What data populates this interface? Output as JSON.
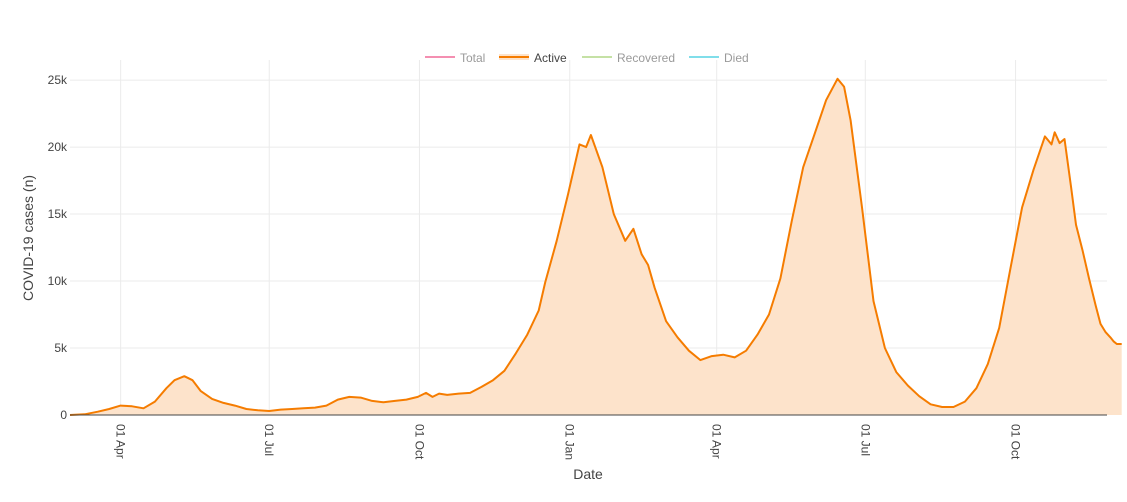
{
  "chart_data": {
    "type": "area",
    "xlabel": "Date",
    "ylabel": "COVID-19 cases (n)",
    "x_range": [
      "2020-03-01",
      "2021-11-26"
    ],
    "ylim": [
      0,
      26500
    ],
    "y_ticks": [
      {
        "value": 0,
        "label": "0"
      },
      {
        "value": 5000,
        "label": "5k"
      },
      {
        "value": 10000,
        "label": "10k"
      },
      {
        "value": 15000,
        "label": "15k"
      },
      {
        "value": 20000,
        "label": "20k"
      },
      {
        "value": 25000,
        "label": "25k"
      }
    ],
    "x_ticks": [
      {
        "date": "2020-04-01",
        "label": "01 Apr"
      },
      {
        "date": "2020-07-01",
        "label": "01 Jul"
      },
      {
        "date": "2020-10-01",
        "label": "01 Oct"
      },
      {
        "date": "2021-01-01",
        "label": "01 Jan"
      },
      {
        "date": "2021-04-01",
        "label": "01 Apr"
      },
      {
        "date": "2021-07-01",
        "label": "01 Jul"
      },
      {
        "date": "2021-10-01",
        "label": "01 Oct"
      }
    ],
    "grid": true,
    "legend_position": "top-center",
    "legend": [
      {
        "name": "Total",
        "color": "#f48fb1",
        "active": false
      },
      {
        "name": "Active",
        "color": "#f57c00",
        "active": true
      },
      {
        "name": "Recovered",
        "color": "#c5e1a5",
        "active": false
      },
      {
        "name": "Died",
        "color": "#80deea",
        "active": false
      }
    ],
    "series": [
      {
        "name": "Active",
        "color": "#f57c00",
        "fill": "#fde3cb",
        "points": [
          [
            "2020-03-01",
            0
          ],
          [
            "2020-03-10",
            50
          ],
          [
            "2020-03-18",
            250
          ],
          [
            "2020-03-25",
            450
          ],
          [
            "2020-04-01",
            700
          ],
          [
            "2020-04-08",
            650
          ],
          [
            "2020-04-15",
            500
          ],
          [
            "2020-04-22",
            1000
          ],
          [
            "2020-04-29",
            2000
          ],
          [
            "2020-05-04",
            2600
          ],
          [
            "2020-05-10",
            2900
          ],
          [
            "2020-05-15",
            2600
          ],
          [
            "2020-05-20",
            1800
          ],
          [
            "2020-05-27",
            1200
          ],
          [
            "2020-06-03",
            900
          ],
          [
            "2020-06-10",
            700
          ],
          [
            "2020-06-17",
            450
          ],
          [
            "2020-06-24",
            350
          ],
          [
            "2020-07-01",
            300
          ],
          [
            "2020-07-08",
            400
          ],
          [
            "2020-07-15",
            450
          ],
          [
            "2020-07-22",
            500
          ],
          [
            "2020-07-29",
            550
          ],
          [
            "2020-08-05",
            700
          ],
          [
            "2020-08-12",
            1150
          ],
          [
            "2020-08-19",
            1350
          ],
          [
            "2020-08-26",
            1300
          ],
          [
            "2020-09-02",
            1050
          ],
          [
            "2020-09-09",
            950
          ],
          [
            "2020-09-16",
            1050
          ],
          [
            "2020-09-23",
            1150
          ],
          [
            "2020-09-30",
            1350
          ],
          [
            "2020-10-05",
            1650
          ],
          [
            "2020-10-09",
            1350
          ],
          [
            "2020-10-13",
            1600
          ],
          [
            "2020-10-18",
            1500
          ],
          [
            "2020-10-25",
            1600
          ],
          [
            "2020-11-01",
            1650
          ],
          [
            "2020-11-08",
            2100
          ],
          [
            "2020-11-15",
            2600
          ],
          [
            "2020-11-22",
            3300
          ],
          [
            "2020-11-29",
            4600
          ],
          [
            "2020-12-06",
            6000
          ],
          [
            "2020-12-13",
            7800
          ],
          [
            "2020-12-17",
            9900
          ],
          [
            "2020-12-24",
            13000
          ],
          [
            "2020-12-31",
            16500
          ],
          [
            "2021-01-07",
            20200
          ],
          [
            "2021-01-11",
            20000
          ],
          [
            "2021-01-14",
            20900
          ],
          [
            "2021-01-21",
            18500
          ],
          [
            "2021-01-28",
            15000
          ],
          [
            "2021-02-04",
            13000
          ],
          [
            "2021-02-09",
            13900
          ],
          [
            "2021-02-14",
            12000
          ],
          [
            "2021-02-18",
            11200
          ],
          [
            "2021-02-22",
            9500
          ],
          [
            "2021-03-01",
            7000
          ],
          [
            "2021-03-08",
            5800
          ],
          [
            "2021-03-15",
            4800
          ],
          [
            "2021-03-22",
            4100
          ],
          [
            "2021-03-29",
            4400
          ],
          [
            "2021-04-05",
            4500
          ],
          [
            "2021-04-12",
            4300
          ],
          [
            "2021-04-19",
            4800
          ],
          [
            "2021-04-26",
            6000
          ],
          [
            "2021-05-03",
            7500
          ],
          [
            "2021-05-10",
            10200
          ],
          [
            "2021-05-17",
            14500
          ],
          [
            "2021-05-24",
            18500
          ],
          [
            "2021-05-31",
            21000
          ],
          [
            "2021-06-07",
            23500
          ],
          [
            "2021-06-14",
            25100
          ],
          [
            "2021-06-18",
            24500
          ],
          [
            "2021-06-22",
            22000
          ],
          [
            "2021-06-29",
            15500
          ],
          [
            "2021-07-06",
            8500
          ],
          [
            "2021-07-13",
            5000
          ],
          [
            "2021-07-20",
            3200
          ],
          [
            "2021-07-27",
            2200
          ],
          [
            "2021-08-03",
            1400
          ],
          [
            "2021-08-10",
            800
          ],
          [
            "2021-08-17",
            600
          ],
          [
            "2021-08-24",
            600
          ],
          [
            "2021-08-31",
            1000
          ],
          [
            "2021-09-07",
            2000
          ],
          [
            "2021-09-14",
            3800
          ],
          [
            "2021-09-21",
            6500
          ],
          [
            "2021-09-28",
            11000
          ],
          [
            "2021-10-05",
            15500
          ],
          [
            "2021-10-12",
            18300
          ],
          [
            "2021-10-19",
            20800
          ],
          [
            "2021-10-23",
            20200
          ],
          [
            "2021-10-25",
            21100
          ],
          [
            "2021-10-28",
            20300
          ],
          [
            "2021-10-31",
            20600
          ],
          [
            "2021-11-04",
            17000
          ],
          [
            "2021-11-07",
            14200
          ],
          [
            "2021-11-11",
            12300
          ],
          [
            "2021-11-15",
            10200
          ],
          [
            "2021-11-19",
            8200
          ],
          [
            "2021-11-22",
            6800
          ],
          [
            "2021-11-25",
            6200
          ],
          [
            "2021-11-28",
            5800
          ],
          [
            "2021-11-30",
            5500
          ],
          [
            "2021-12-02",
            5300
          ],
          [
            "2021-12-05",
            5300
          ]
        ]
      }
    ]
  }
}
